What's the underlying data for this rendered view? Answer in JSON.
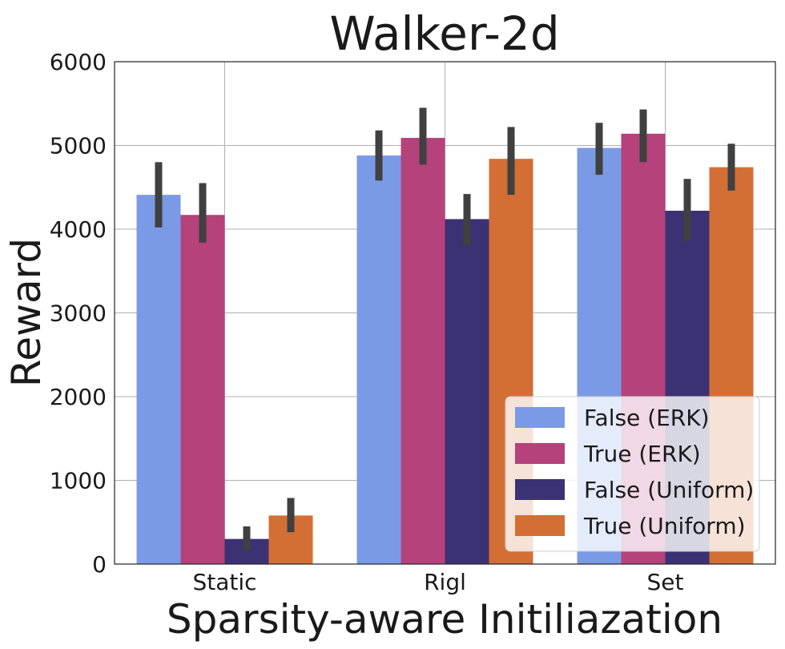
{
  "chart_data": {
    "type": "bar",
    "title": "Walker-2d",
    "xlabel": "Sparsity-aware Initiliazation",
    "ylabel": "Reward",
    "categories": [
      "Static",
      "Rigl",
      "Set"
    ],
    "ylim": [
      0,
      6000
    ],
    "yticks": [
      0,
      1000,
      2000,
      3000,
      4000,
      5000,
      6000
    ],
    "grid": true,
    "legend_position": "lower-right",
    "series": [
      {
        "name": "False (ERK)",
        "color": "#7b9ae5",
        "values": [
          4410,
          4880,
          4970
        ],
        "error": [
          [
            4020,
            4800
          ],
          [
            4580,
            5180
          ],
          [
            4650,
            5270
          ]
        ]
      },
      {
        "name": "True (ERK)",
        "color": "#b5427a",
        "values": [
          4170,
          5090,
          5140
        ],
        "error": [
          [
            3840,
            4550
          ],
          [
            4770,
            5450
          ],
          [
            4800,
            5430
          ]
        ]
      },
      {
        "name": "False (Uniform)",
        "color": "#3b3273",
        "values": [
          300,
          4120,
          4220
        ],
        "error": [
          [
            160,
            450
          ],
          [
            3810,
            4420
          ],
          [
            3860,
            4600
          ]
        ]
      },
      {
        "name": "True (Uniform)",
        "color": "#d36f34",
        "values": [
          580,
          4840,
          4740
        ],
        "error": [
          [
            380,
            790
          ],
          [
            4410,
            5220
          ],
          [
            4460,
            5020
          ]
        ]
      }
    ]
  }
}
